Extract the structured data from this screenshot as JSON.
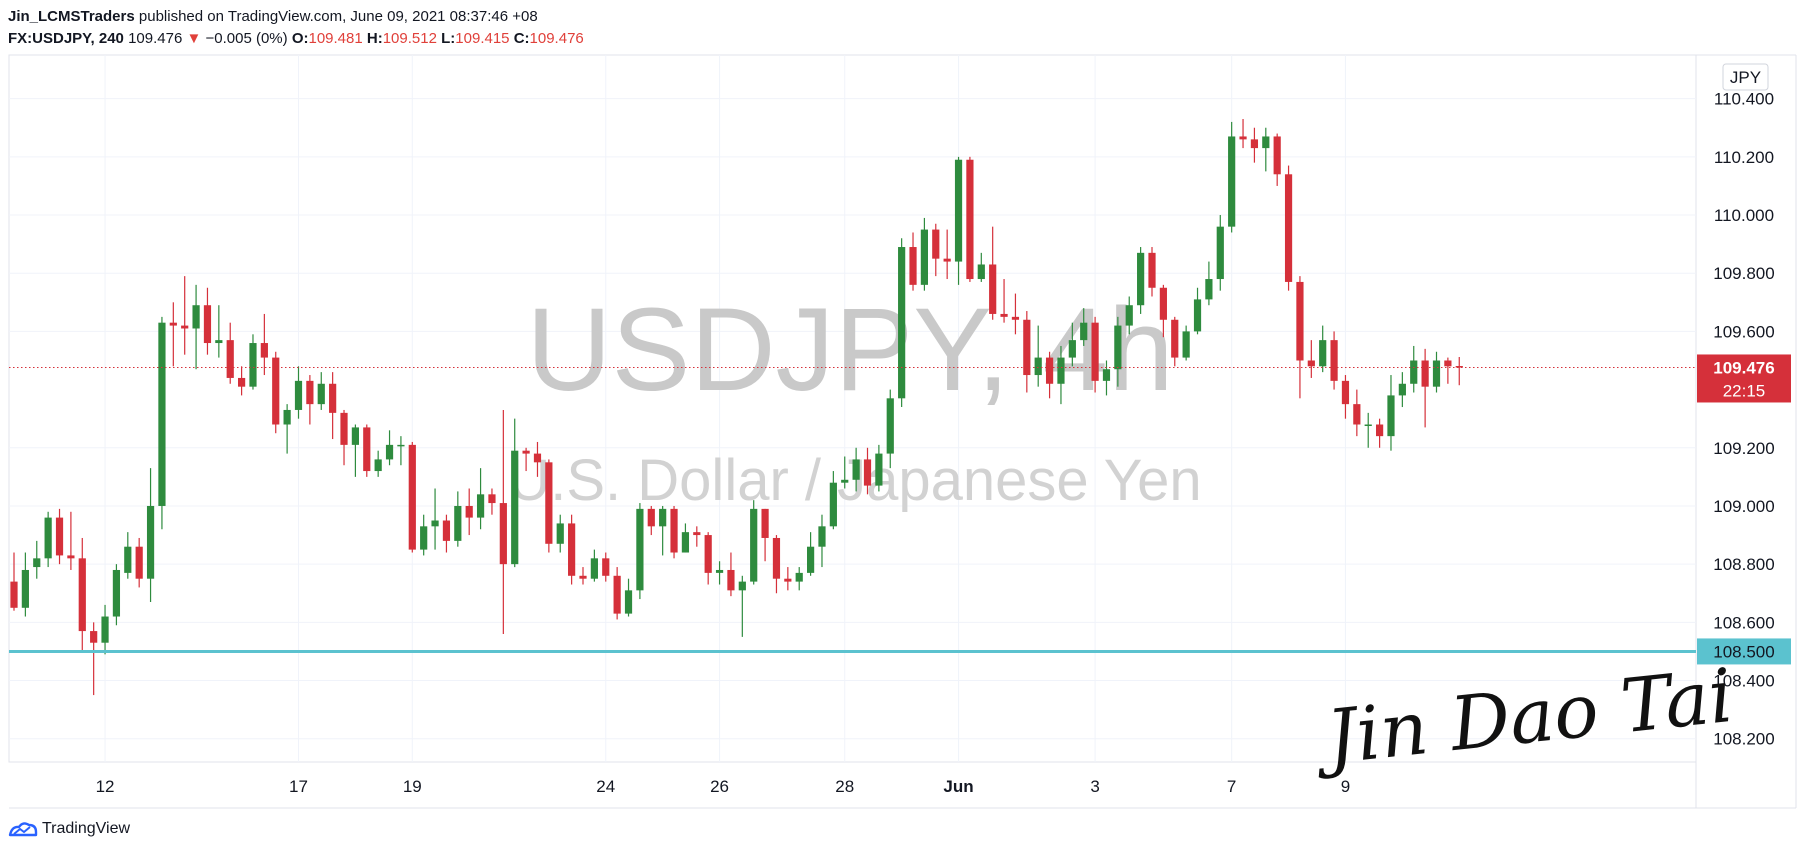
{
  "header": {
    "author": "Jin_LCMSTraders",
    "published_text": "published on TradingView.com, June 09, 2021 08:37:46 +08",
    "symbol": "FX:USDJPY, 240",
    "last": "109.476",
    "change": "−0.005 (0%)",
    "o_label": "O:",
    "o_value": "109.481",
    "h_label": "H:",
    "h_value": "109.512",
    "l_label": "L:",
    "l_value": "109.415",
    "c_label": "C:",
    "c_value": "109.476"
  },
  "watermark": {
    "title": "USDJPY, 4h",
    "subtitle": "U.S. Dollar / Japanese Yen"
  },
  "signature": "Jin Dao Tai",
  "footer": {
    "brand": "TradingView"
  },
  "colors": {
    "up": "#2e8b3e",
    "down": "#d5303a",
    "level": "#5bc2cf",
    "price_tag": "#d5303a"
  },
  "chart_data": {
    "type": "candlestick",
    "currency": "JPY",
    "ylim": [
      108.12,
      110.55
    ],
    "y_ticks": [
      "110.400",
      "110.200",
      "110.000",
      "109.800",
      "109.600",
      "109.200",
      "109.000",
      "108.800",
      "108.600",
      "108.400",
      "108.200"
    ],
    "x_ticks": [
      {
        "label": "12",
        "index": 8
      },
      {
        "label": "17",
        "index": 25
      },
      {
        "label": "19",
        "index": 35
      },
      {
        "label": "24",
        "index": 52
      },
      {
        "label": "26",
        "index": 62
      },
      {
        "label": "28",
        "index": 73
      },
      {
        "label": "Jun",
        "index": 83
      },
      {
        "label": "3",
        "index": 95
      },
      {
        "label": "7",
        "index": 107
      },
      {
        "label": "9",
        "index": 117
      }
    ],
    "price_line": {
      "value": 109.476,
      "label": "109.476",
      "countdown": "22:15"
    },
    "support_line": {
      "value": 108.5,
      "label": "108.500"
    },
    "candles": [
      [
        108.74,
        108.65,
        108.84,
        108.64
      ],
      [
        108.65,
        108.78,
        108.84,
        108.62
      ],
      [
        108.79,
        108.82,
        108.88,
        108.75
      ],
      [
        108.82,
        108.96,
        108.98,
        108.79
      ],
      [
        108.96,
        108.83,
        108.99,
        108.8
      ],
      [
        108.83,
        108.82,
        108.98,
        108.78
      ],
      [
        108.82,
        108.57,
        108.89,
        108.5
      ],
      [
        108.57,
        108.53,
        108.6,
        108.35
      ],
      [
        108.53,
        108.62,
        108.66,
        108.49
      ],
      [
        108.62,
        108.78,
        108.8,
        108.59
      ],
      [
        108.77,
        108.86,
        108.91,
        108.75
      ],
      [
        108.86,
        108.75,
        108.89,
        108.72
      ],
      [
        108.75,
        109.0,
        109.13,
        108.67
      ],
      [
        109.0,
        109.63,
        109.65,
        108.92
      ],
      [
        109.63,
        109.62,
        109.7,
        109.48
      ],
      [
        109.62,
        109.61,
        109.79,
        109.52
      ],
      [
        109.61,
        109.69,
        109.76,
        109.47
      ],
      [
        109.69,
        109.56,
        109.75,
        109.52
      ],
      [
        109.56,
        109.57,
        109.69,
        109.51
      ],
      [
        109.57,
        109.44,
        109.63,
        109.42
      ],
      [
        109.44,
        109.41,
        109.48,
        109.38
      ],
      [
        109.41,
        109.56,
        109.59,
        109.4
      ],
      [
        109.56,
        109.51,
        109.66,
        109.45
      ],
      [
        109.51,
        109.28,
        109.53,
        109.25
      ],
      [
        109.28,
        109.33,
        109.35,
        109.18
      ],
      [
        109.33,
        109.43,
        109.48,
        109.3
      ],
      [
        109.43,
        109.35,
        109.45,
        109.28
      ],
      [
        109.35,
        109.42,
        109.46,
        109.33
      ],
      [
        109.42,
        109.32,
        109.46,
        109.23
      ],
      [
        109.32,
        109.21,
        109.33,
        109.14
      ],
      [
        109.21,
        109.27,
        109.28,
        109.1
      ],
      [
        109.27,
        109.12,
        109.28,
        109.1
      ],
      [
        109.12,
        109.16,
        109.19,
        109.1
      ],
      [
        109.16,
        109.21,
        109.26,
        109.14
      ],
      [
        109.21,
        109.21,
        109.24,
        109.14
      ],
      [
        109.21,
        108.85,
        109.22,
        108.84
      ],
      [
        108.85,
        108.93,
        108.97,
        108.83
      ],
      [
        108.93,
        108.95,
        109.06,
        108.85
      ],
      [
        108.95,
        108.88,
        108.97,
        108.84
      ],
      [
        108.88,
        109.0,
        109.05,
        108.86
      ],
      [
        109.0,
        108.96,
        109.06,
        108.9
      ],
      [
        108.96,
        109.04,
        109.13,
        108.92
      ],
      [
        109.04,
        109.01,
        109.06,
        108.97
      ],
      [
        109.01,
        108.8,
        109.33,
        108.56
      ],
      [
        108.8,
        109.19,
        109.3,
        108.79
      ],
      [
        109.19,
        109.18,
        109.2,
        109.12
      ],
      [
        109.18,
        109.15,
        109.22,
        109.1
      ],
      [
        109.15,
        108.87,
        109.16,
        108.84
      ],
      [
        108.87,
        108.94,
        108.97,
        108.84
      ],
      [
        108.94,
        108.76,
        108.97,
        108.73
      ],
      [
        108.76,
        108.75,
        108.79,
        108.73
      ],
      [
        108.75,
        108.82,
        108.85,
        108.74
      ],
      [
        108.82,
        108.76,
        108.84,
        108.74
      ],
      [
        108.76,
        108.63,
        108.79,
        108.61
      ],
      [
        108.63,
        108.71,
        108.75,
        108.62
      ],
      [
        108.71,
        108.99,
        109.01,
        108.68
      ],
      [
        108.99,
        108.93,
        109.0,
        108.9
      ],
      [
        108.93,
        108.99,
        109.0,
        108.83
      ],
      [
        108.99,
        108.84,
        109.0,
        108.82
      ],
      [
        108.84,
        108.91,
        108.94,
        108.84
      ],
      [
        108.91,
        108.9,
        108.93,
        108.86
      ],
      [
        108.9,
        108.77,
        108.91,
        108.73
      ],
      [
        108.77,
        108.78,
        108.81,
        108.73
      ],
      [
        108.78,
        108.71,
        108.84,
        108.69
      ],
      [
        108.71,
        108.74,
        108.76,
        108.55
      ],
      [
        108.74,
        108.99,
        109.02,
        108.73
      ],
      [
        108.99,
        108.89,
        108.99,
        108.81
      ],
      [
        108.89,
        108.75,
        108.9,
        108.7
      ],
      [
        108.75,
        108.74,
        108.79,
        108.71
      ],
      [
        108.74,
        108.77,
        108.79,
        108.71
      ],
      [
        108.77,
        108.86,
        108.91,
        108.76
      ],
      [
        108.86,
        108.93,
        108.97,
        108.79
      ],
      [
        108.93,
        109.08,
        109.12,
        108.92
      ],
      [
        109.08,
        109.09,
        109.17,
        109.06
      ],
      [
        109.09,
        109.16,
        109.2,
        109.05
      ],
      [
        109.16,
        109.07,
        109.2,
        109.04
      ],
      [
        109.07,
        109.18,
        109.21,
        109.05
      ],
      [
        109.18,
        109.37,
        109.4,
        109.13
      ],
      [
        109.37,
        109.89,
        109.92,
        109.34
      ],
      [
        109.89,
        109.76,
        109.94,
        109.74
      ],
      [
        109.76,
        109.95,
        109.99,
        109.74
      ],
      [
        109.95,
        109.85,
        109.97,
        109.79
      ],
      [
        109.85,
        109.84,
        109.95,
        109.78
      ],
      [
        109.84,
        110.19,
        110.2,
        109.76
      ],
      [
        110.19,
        109.78,
        110.2,
        109.77
      ],
      [
        109.78,
        109.83,
        109.87,
        109.77
      ],
      [
        109.83,
        109.66,
        109.96,
        109.64
      ],
      [
        109.66,
        109.65,
        109.78,
        109.63
      ],
      [
        109.65,
        109.64,
        109.73,
        109.59
      ],
      [
        109.64,
        109.45,
        109.67,
        109.39
      ],
      [
        109.45,
        109.51,
        109.62,
        109.41
      ],
      [
        109.51,
        109.42,
        109.53,
        109.37
      ],
      [
        109.42,
        109.51,
        109.55,
        109.35
      ],
      [
        109.51,
        109.57,
        109.63,
        109.48
      ],
      [
        109.57,
        109.63,
        109.68,
        109.55
      ],
      [
        109.63,
        109.43,
        109.65,
        109.39
      ],
      [
        109.43,
        109.47,
        109.5,
        109.38
      ],
      [
        109.47,
        109.62,
        109.65,
        109.41
      ],
      [
        109.62,
        109.69,
        109.72,
        109.59
      ],
      [
        109.69,
        109.87,
        109.89,
        109.66
      ],
      [
        109.87,
        109.75,
        109.89,
        109.72
      ],
      [
        109.75,
        109.64,
        109.76,
        109.58
      ],
      [
        109.64,
        109.51,
        109.65,
        109.48
      ],
      [
        109.51,
        109.6,
        109.62,
        109.5
      ],
      [
        109.6,
        109.71,
        109.75,
        109.59
      ],
      [
        109.71,
        109.78,
        109.84,
        109.69
      ],
      [
        109.78,
        109.96,
        110.0,
        109.74
      ],
      [
        109.96,
        110.27,
        110.32,
        109.94
      ],
      [
        110.27,
        110.26,
        110.33,
        110.23
      ],
      [
        110.26,
        110.23,
        110.3,
        110.18
      ],
      [
        110.23,
        110.27,
        110.3,
        110.15
      ],
      [
        110.27,
        110.14,
        110.28,
        110.1
      ],
      [
        110.14,
        109.77,
        110.17,
        109.74
      ],
      [
        109.77,
        109.5,
        109.79,
        109.37
      ],
      [
        109.5,
        109.48,
        109.57,
        109.44
      ],
      [
        109.48,
        109.57,
        109.62,
        109.46
      ],
      [
        109.57,
        109.43,
        109.6,
        109.4
      ],
      [
        109.43,
        109.35,
        109.45,
        109.3
      ],
      [
        109.35,
        109.28,
        109.4,
        109.24
      ],
      [
        109.28,
        109.28,
        109.32,
        109.2
      ],
      [
        109.28,
        109.24,
        109.3,
        109.2
      ],
      [
        109.24,
        109.38,
        109.45,
        109.19
      ],
      [
        109.38,
        109.42,
        109.46,
        109.34
      ],
      [
        109.42,
        109.5,
        109.55,
        109.39
      ],
      [
        109.5,
        109.41,
        109.54,
        109.27
      ],
      [
        109.41,
        109.5,
        109.53,
        109.39
      ],
      [
        109.5,
        109.48,
        109.51,
        109.42
      ],
      [
        109.481,
        109.476,
        109.512,
        109.415
      ]
    ]
  }
}
